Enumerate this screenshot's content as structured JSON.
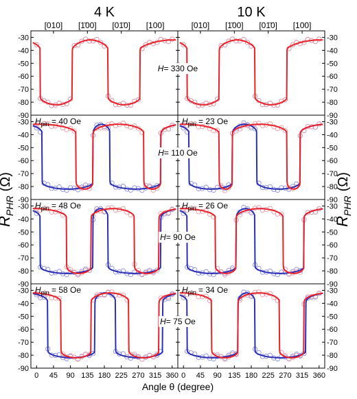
{
  "colors": {
    "red": "#e8212b",
    "blue": "#2b2fb4",
    "red_marker": "#e89aa2",
    "blue_marker": "#8c8ee0"
  },
  "columns": [
    {
      "label": "4 K"
    },
    {
      "label": "10 K"
    }
  ],
  "direction_labels": [
    "[010]",
    "[1̄00]",
    "[01̄0]",
    "[100]"
  ],
  "y_axis": {
    "label_main": "R",
    "label_sub": "PHR",
    "label_unit": "(Ω)",
    "ticks": [
      -30,
      -40,
      -50,
      -60,
      -70,
      -80,
      -90
    ]
  },
  "x_axis": {
    "label": "Angle θ (degree)",
    "ticks": [
      0,
      45,
      90,
      135,
      180,
      225,
      270,
      315,
      360
    ]
  },
  "rows": [
    {
      "field": "330 Oe",
      "hpin": [
        "",
        ""
      ]
    },
    {
      "field": "110 Oe",
      "hpin": [
        "40 Oe",
        "23 Oe"
      ]
    },
    {
      "field": "90 Oe",
      "hpin": [
        "48 Oe",
        "26 Oe"
      ]
    },
    {
      "field": "75 Oe",
      "hpin": [
        "58 Oe",
        "34 Oe"
      ]
    }
  ],
  "chart_data": {
    "type": "line",
    "xlabel": "Angle θ (degree)",
    "ylabel": "RPHR (Ω)",
    "xlim": [
      -15,
      375
    ],
    "ylim": [
      -90,
      -25
    ],
    "high_level": -32,
    "low_level": -82,
    "panels": [
      {
        "row": 0,
        "col": 0,
        "field": "330 Oe",
        "red_switch": [
          10,
          95,
          190,
          275
        ],
        "blue_switch": [
          10,
          95,
          190,
          275
        ]
      },
      {
        "row": 0,
        "col": 1,
        "field": "330 Oe",
        "red_switch": [
          10,
          95,
          190,
          275
        ],
        "blue_switch": [
          10,
          95,
          190,
          275
        ]
      },
      {
        "row": 1,
        "col": 0,
        "field": "110 Oe",
        "hpin": "40 Oe",
        "red_switch": [
          105,
          150,
          285,
          330
        ],
        "blue_switch": [
          15,
          150,
          195,
          330
        ]
      },
      {
        "row": 1,
        "col": 1,
        "field": "110 Oe",
        "hpin": "23 Oe",
        "red_switch": [
          95,
          130,
          275,
          310
        ],
        "blue_switch": [
          15,
          130,
          195,
          310
        ]
      },
      {
        "row": 2,
        "col": 0,
        "field": "90 Oe",
        "hpin": "48 Oe",
        "red_switch": [
          80,
          145,
          260,
          325
        ],
        "blue_switch": [
          10,
          150,
          190,
          330
        ]
      },
      {
        "row": 2,
        "col": 1,
        "field": "90 Oe",
        "hpin": "26 Oe",
        "red_switch": [
          85,
          140,
          265,
          320
        ],
        "blue_switch": [
          10,
          140,
          190,
          320
        ]
      },
      {
        "row": 3,
        "col": 0,
        "field": "75 Oe",
        "hpin": "58 Oe",
        "red_switch": [
          65,
          145,
          245,
          325
        ],
        "blue_switch": [
          30,
          155,
          210,
          335
        ]
      },
      {
        "row": 3,
        "col": 1,
        "field": "75 Oe",
        "hpin": "34 Oe",
        "red_switch": [
          75,
          145,
          255,
          320
        ],
        "blue_switch": [
          10,
          145,
          190,
          325
        ]
      }
    ]
  }
}
